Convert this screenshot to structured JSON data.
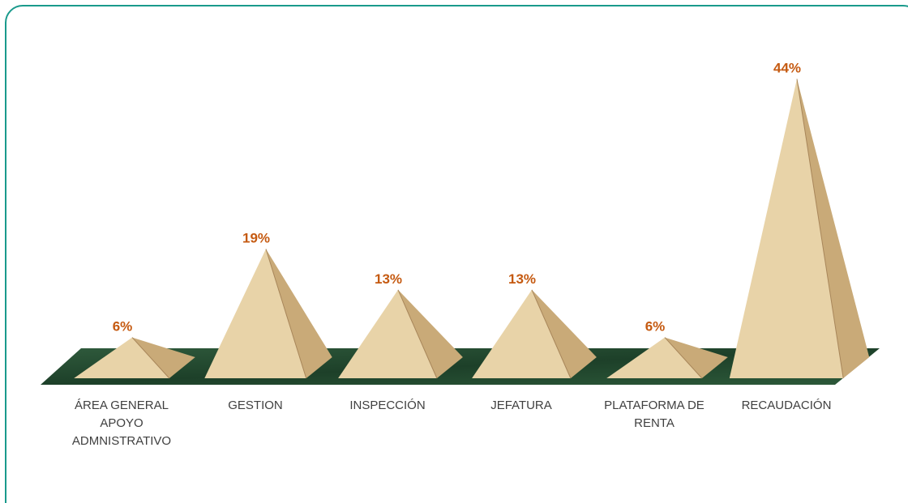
{
  "chart_data": {
    "type": "pyramid",
    "categories": [
      "ÁREA GENERAL APOYO ADMNISTRATIVO",
      "GESTION",
      "INSPECCIÓN",
      "JEFATURA",
      "PLATAFORMA DE RENTA",
      "RECAUDACIÓN"
    ],
    "values": [
      6,
      19,
      13,
      13,
      6,
      44
    ],
    "value_labels": [
      "6%",
      "19%",
      "13%",
      "13%",
      "6%",
      "44%"
    ],
    "color": "#e8d3a8",
    "label_color": "#c55a11"
  }
}
